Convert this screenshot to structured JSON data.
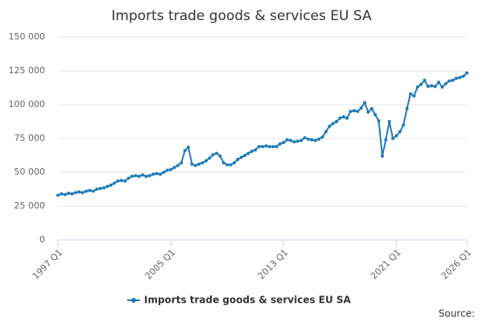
{
  "chart_data": {
    "type": "line",
    "title": "Imports trade goods & services EU SA",
    "source": "Source:",
    "categories": [
      "1997 Q1",
      null,
      null,
      null,
      null,
      null,
      null,
      null,
      null,
      null,
      null,
      null,
      null,
      null,
      null,
      null,
      null,
      null,
      null,
      null,
      null,
      null,
      null,
      null,
      null,
      null,
      null,
      null,
      null,
      null,
      null,
      null,
      "2005 Q1",
      null,
      null,
      null,
      null,
      null,
      null,
      null,
      null,
      null,
      null,
      null,
      null,
      null,
      null,
      null,
      null,
      null,
      null,
      null,
      null,
      null,
      null,
      null,
      null,
      null,
      null,
      null,
      null,
      null,
      null,
      null,
      "2013 Q1",
      null,
      null,
      null,
      null,
      null,
      null,
      null,
      null,
      null,
      null,
      null,
      null,
      null,
      null,
      null,
      null,
      null,
      null,
      null,
      null,
      null,
      null,
      null,
      null,
      null,
      null,
      null,
      null,
      null,
      null,
      null,
      "2021 Q1",
      null,
      null,
      null,
      null,
      null,
      null,
      null,
      null,
      null,
      null,
      null,
      null,
      null,
      null,
      null,
      null,
      null,
      null,
      null,
      "2026 Q1"
    ],
    "series": [
      {
        "name": "Imports trade goods & services EU SA",
        "color": "#1f7bb8",
        "values": [
          33000,
          34000,
          33500,
          34500,
          34000,
          35000,
          35500,
          35000,
          36000,
          36500,
          36000,
          37500,
          38000,
          38500,
          39500,
          40500,
          42000,
          43500,
          44000,
          43500,
          45500,
          47000,
          47500,
          47000,
          48000,
          47000,
          47500,
          48500,
          49000,
          48500,
          50000,
          51500,
          52000,
          53500,
          55000,
          57000,
          66000,
          68500,
          56000,
          55000,
          56000,
          57000,
          58500,
          60500,
          63000,
          64000,
          62000,
          57000,
          55500,
          55500,
          57000,
          59500,
          61000,
          62500,
          64000,
          65500,
          66500,
          69000,
          69000,
          69500,
          69000,
          69000,
          69000,
          71000,
          72000,
          74000,
          73500,
          72500,
          73000,
          73500,
          75500,
          74500,
          74000,
          73500,
          74500,
          76000,
          80000,
          84000,
          86000,
          87500,
          90000,
          91000,
          90000,
          95000,
          95500,
          95000,
          97500,
          101500,
          94500,
          97000,
          92500,
          88000,
          62000,
          74000,
          87500,
          75000,
          77000,
          80000,
          85000,
          97000,
          108000,
          106500,
          113000,
          115000,
          118000,
          113500,
          114000,
          113500,
          116500,
          113000,
          115500,
          117500,
          118000,
          119500,
          120000,
          121000,
          123500
        ]
      }
    ],
    "ylim": [
      0,
      150000
    ],
    "yticks": [
      0,
      {
        "value": 25000,
        "label": "25 000"
      },
      {
        "value": 50000,
        "label": "50 000"
      },
      {
        "value": 75000,
        "label": "75 000"
      },
      {
        "value": 100000,
        "label": "100 000"
      },
      {
        "value": 125000,
        "label": "125 000"
      },
      {
        "value": 150000,
        "label": "150 000"
      }
    ],
    "grid": true,
    "legend": "bottom"
  }
}
